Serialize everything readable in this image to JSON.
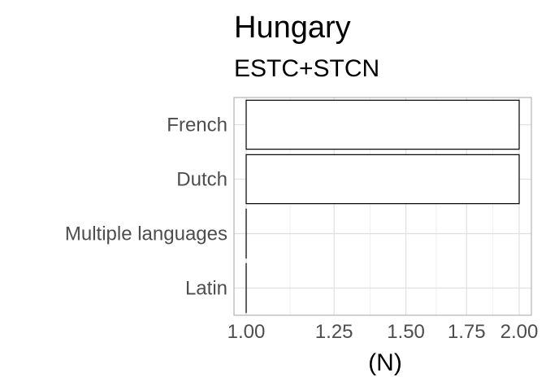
{
  "chart_data": {
    "type": "bar",
    "orientation": "horizontal",
    "title": "Hungary",
    "subtitle": "ESTC+STCN",
    "xlabel": "(N)",
    "ylabel": "",
    "categories": [
      "French",
      "Dutch",
      "Multiple languages",
      "Latin"
    ],
    "values": [
      2,
      2,
      1,
      1
    ],
    "xscale": "log",
    "xlim": [
      1,
      2
    ],
    "xticks": [
      1.0,
      1.25,
      1.5,
      1.75,
      2.0
    ],
    "xtick_labels": [
      "1.00",
      "1.25",
      "1.50",
      "1.75",
      "2.00"
    ],
    "grid": true,
    "colors": {
      "bar_fill": "#ffffff",
      "bar_stroke": "#000000",
      "grid": "#e0e0e0",
      "panel_border": "#b3b3b3"
    }
  }
}
